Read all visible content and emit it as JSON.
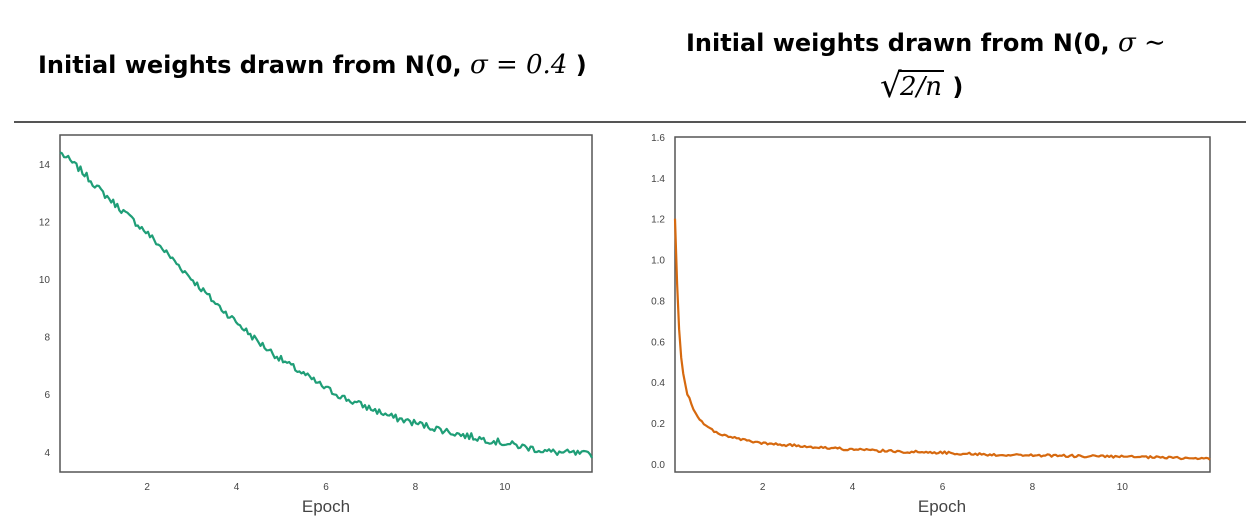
{
  "titles": {
    "left_prefix": "Initial weights drawn from N(0, ",
    "left_math": "σ = 0.4",
    "left_suffix": " )",
    "right_prefix": "Initial weights drawn from N(0, ",
    "right_math": "σ ∼",
    "right_sqrt": "2/n",
    "right_suffix": " )"
  },
  "colors": {
    "left_series": "#1f9e77",
    "right_series": "#d6690f",
    "frame": "#555555",
    "divider": "#555555"
  },
  "chart_data": [
    {
      "type": "line",
      "title": "",
      "xlabel": "Epoch",
      "ylabel": "",
      "xlim": [
        0.05,
        11.95
      ],
      "ylim": [
        3.3,
        15.0
      ],
      "xticks": [
        2,
        4,
        6,
        8,
        10
      ],
      "yticks": [
        4,
        6,
        8,
        10,
        12,
        14
      ],
      "grid": false,
      "series": [
        {
          "x": [
            0.05,
            0.5,
            1.0,
            1.5,
            2.0,
            2.5,
            3.0,
            3.5,
            4.0,
            4.5,
            5.0,
            5.5,
            6.0,
            6.5,
            7.0,
            7.5,
            8.0,
            8.5,
            9.0,
            9.5,
            10.0,
            10.5,
            11.0,
            11.5,
            11.95
          ],
          "y": [
            14.4,
            13.8,
            13.0,
            12.3,
            11.6,
            10.8,
            10.0,
            9.2,
            8.5,
            7.8,
            7.2,
            6.7,
            6.2,
            5.8,
            5.5,
            5.2,
            5.0,
            4.8,
            4.6,
            4.45,
            4.3,
            4.15,
            4.0,
            3.95,
            3.9
          ],
          "noise": 0.12
        }
      ]
    },
    {
      "type": "line",
      "title": "",
      "xlabel": "Epoch",
      "ylabel": "",
      "xlim": [
        0.05,
        11.95
      ],
      "ylim": [
        -0.04,
        1.6
      ],
      "xticks": [
        2,
        4,
        6,
        8,
        10
      ],
      "yticks": [
        0.0,
        0.2,
        0.4,
        0.6,
        0.8,
        1.0,
        1.2,
        1.4,
        1.6
      ],
      "grid": false,
      "series": [
        {
          "x": [
            0.05,
            0.1,
            0.15,
            0.2,
            0.3,
            0.4,
            0.5,
            0.7,
            1.0,
            1.5,
            2.0,
            3.0,
            4.0,
            5.0,
            6.0,
            7.0,
            8.0,
            9.0,
            10.0,
            11.0,
            11.95
          ],
          "y": [
            1.2,
            0.85,
            0.62,
            0.48,
            0.36,
            0.3,
            0.25,
            0.19,
            0.15,
            0.12,
            0.1,
            0.085,
            0.07,
            0.06,
            0.055,
            0.045,
            0.042,
            0.038,
            0.035,
            0.03,
            0.025
          ],
          "noise": 0.006
        }
      ]
    }
  ]
}
